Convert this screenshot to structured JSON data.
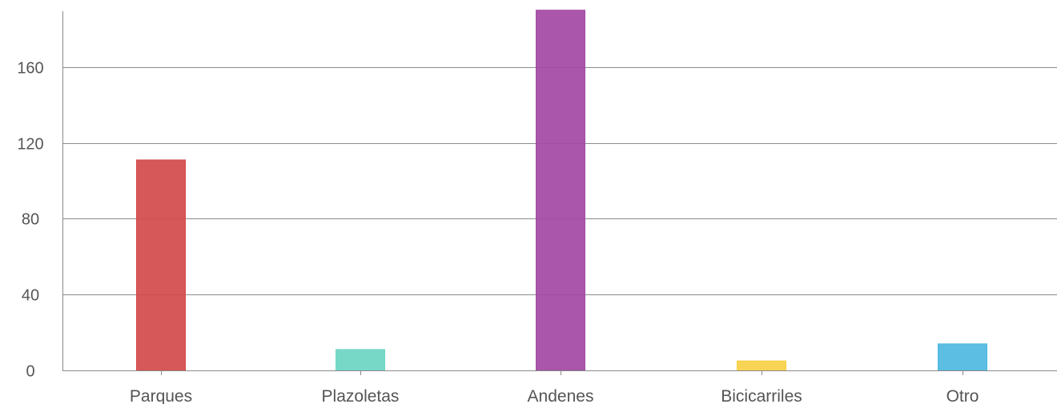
{
  "chart_data": {
    "type": "bar",
    "title": "",
    "xlabel": "",
    "ylabel": "",
    "categories": [
      "Parques",
      "Plazoletas",
      "Andenes",
      "Bicicarriles",
      "Otro"
    ],
    "values": [
      111,
      11,
      190,
      5,
      14
    ],
    "colors": [
      "#d44a4a",
      "#6dd5c3",
      "#a349a4",
      "#f7d046",
      "#4eb9e0"
    ],
    "ylim": [
      0,
      190
    ],
    "yticks": [
      0,
      40,
      80,
      120,
      160
    ],
    "grid": true,
    "legend": "none"
  }
}
